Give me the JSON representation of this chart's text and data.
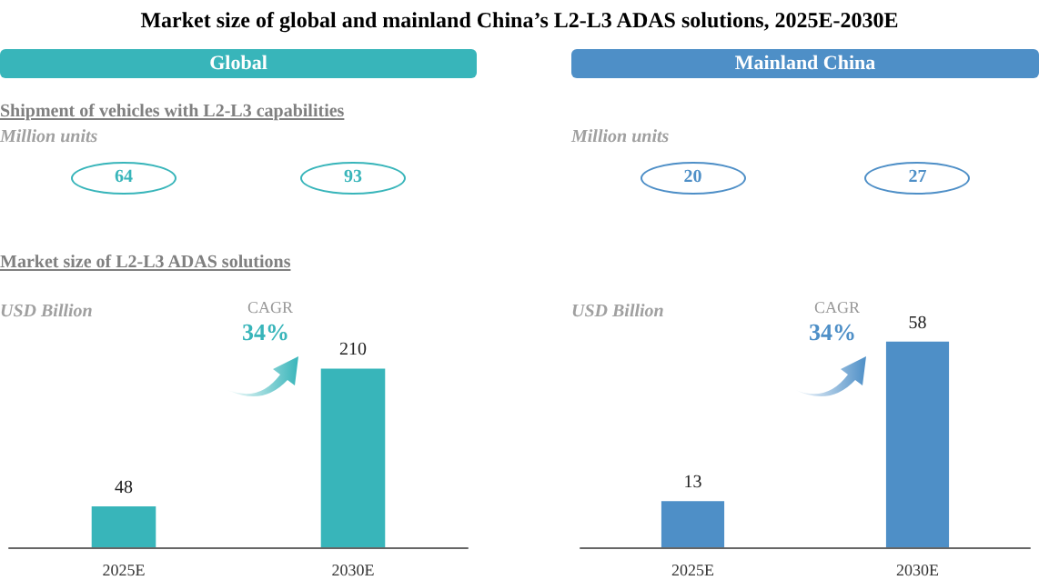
{
  "chart_data": [
    {
      "type": "bar",
      "title": "Market size of global and mainland China’s L2-L3 ADAS solutions, 2025E-2030E",
      "subtitle": "Global",
      "ylabel": "USD Billion",
      "categories": [
        "2025E",
        "2030E"
      ],
      "values": [
        48,
        210
      ],
      "color": "#38b5ba",
      "data_labels": true,
      "annotations": [
        "64",
        "93",
        "CAGR",
        "34%",
        "Shipment of vehicles with L2-L3 capabilities",
        "Million units",
        "Market size of L2-L3 ADAS solutions"
      ]
    },
    {
      "type": "bar",
      "subtitle": "Mainland China",
      "ylabel": "USD Billion",
      "categories": [
        "2025E",
        "2030E"
      ],
      "values": [
        13,
        58
      ],
      "color": "#4e8fc7",
      "data_labels": true,
      "annotations": [
        "20",
        "27",
        "CAGR",
        "34%",
        "Million units"
      ]
    }
  ]
}
